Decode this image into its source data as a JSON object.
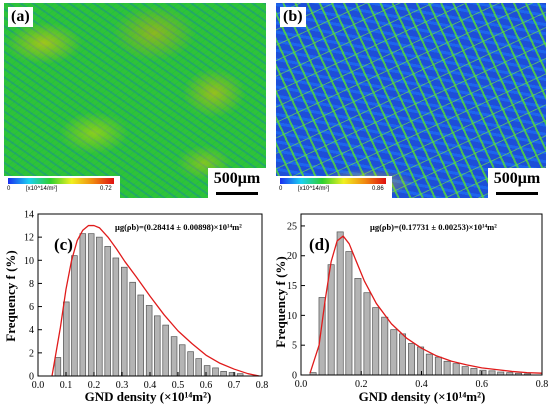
{
  "panels": {
    "a": {
      "label": "(a)",
      "colorbar": {
        "min": "0",
        "unit": "[x10^14/m²]",
        "max": "0.72"
      },
      "scalebar": "500μm"
    },
    "b": {
      "label": "(b)",
      "colorbar": {
        "min": "0",
        "unit": "[x10^14/m²]",
        "max": "0.86"
      },
      "scalebar": "500μm"
    }
  },
  "colors": {
    "bar_fill": "#b4b4b4",
    "bar_stroke": "#555555",
    "fit_line": "#e01b1b"
  },
  "chart_data": [
    {
      "type": "bar",
      "panel_label": "(c)",
      "annotation": "μg(ρb)=(0.28414 ± 0.00898)×10¹⁴m²",
      "xlabel": "GND density (×10¹⁴m²)",
      "ylabel": "Frequency f (%)",
      "xlim": [
        0.0,
        0.8
      ],
      "ylim": [
        0,
        14
      ],
      "xticks": [
        "0.0",
        "0.1",
        "0.2",
        "0.3",
        "0.4",
        "0.5",
        "0.6",
        "0.7",
        "0.8"
      ],
      "yticks": [
        "0",
        "2",
        "4",
        "6",
        "8",
        "10",
        "12",
        "14"
      ],
      "bin_width": 0.0296,
      "bins": [
        0.071,
        0.101,
        0.13,
        0.16,
        0.19,
        0.219,
        0.249,
        0.278,
        0.308,
        0.338,
        0.367,
        0.397,
        0.426,
        0.456,
        0.486,
        0.515,
        0.545,
        0.574,
        0.604,
        0.634,
        0.663,
        0.693,
        0.722
      ],
      "values": [
        1.6,
        6.4,
        10.4,
        12.3,
        12.3,
        12.0,
        11.2,
        10.2,
        9.4,
        8.1,
        7.0,
        6.1,
        5.2,
        4.4,
        3.4,
        2.7,
        2.1,
        1.5,
        0.9,
        0.7,
        0.4,
        0.3,
        0.2
      ],
      "fit": {
        "x": [
          0.05,
          0.08,
          0.1,
          0.12,
          0.14,
          0.16,
          0.18,
          0.2,
          0.22,
          0.25,
          0.28,
          0.31,
          0.35,
          0.4,
          0.45,
          0.5,
          0.55,
          0.6,
          0.65,
          0.7,
          0.75,
          0.79
        ],
        "y": [
          0.0,
          4.2,
          7.5,
          10.0,
          11.7,
          12.6,
          13.0,
          13.0,
          12.8,
          12.0,
          11.0,
          9.9,
          8.6,
          6.9,
          5.3,
          3.9,
          2.8,
          1.8,
          1.1,
          0.6,
          0.2,
          0.0
        ]
      }
    },
    {
      "type": "bar",
      "panel_label": "(d)",
      "annotation": "μg(ρb)=(0.17731 ± 0.00253)×10¹⁴m²",
      "xlabel": "GND density (×10¹⁴m²)",
      "ylabel": "Frequency f (%)",
      "xlim": [
        0.0,
        0.8
      ],
      "ylim": [
        0,
        27
      ],
      "xticks": [
        "0.0",
        "0.2",
        "0.4",
        "0.6",
        "0.8"
      ],
      "yticks": [
        "0",
        "5",
        "10",
        "15",
        "20",
        "25"
      ],
      "bin_width": 0.0296,
      "bins": [
        0.04,
        0.07,
        0.1,
        0.13,
        0.159,
        0.189,
        0.219,
        0.248,
        0.278,
        0.308,
        0.337,
        0.367,
        0.397,
        0.426,
        0.456,
        0.485,
        0.515,
        0.545,
        0.574,
        0.604,
        0.634,
        0.663,
        0.693,
        0.722,
        0.752
      ],
      "values": [
        0.4,
        13.0,
        18.5,
        24.0,
        20.7,
        16.2,
        13.8,
        11.3,
        9.7,
        7.6,
        6.9,
        5.3,
        4.7,
        3.5,
        3.0,
        2.3,
        1.9,
        1.4,
        1.1,
        0.8,
        0.7,
        0.5,
        0.4,
        0.3,
        0.2
      ],
      "fit": {
        "x": [
          0.03,
          0.06,
          0.08,
          0.1,
          0.12,
          0.14,
          0.16,
          0.18,
          0.21,
          0.25,
          0.3,
          0.35,
          0.4,
          0.45,
          0.5,
          0.55,
          0.6,
          0.65,
          0.7,
          0.75,
          0.8
        ],
        "y": [
          0.3,
          5.0,
          12.5,
          19.0,
          22.5,
          23.3,
          22.0,
          19.5,
          15.8,
          12.0,
          8.6,
          6.2,
          4.5,
          3.2,
          2.3,
          1.7,
          1.2,
          0.9,
          0.6,
          0.4,
          0.3
        ]
      }
    }
  ]
}
